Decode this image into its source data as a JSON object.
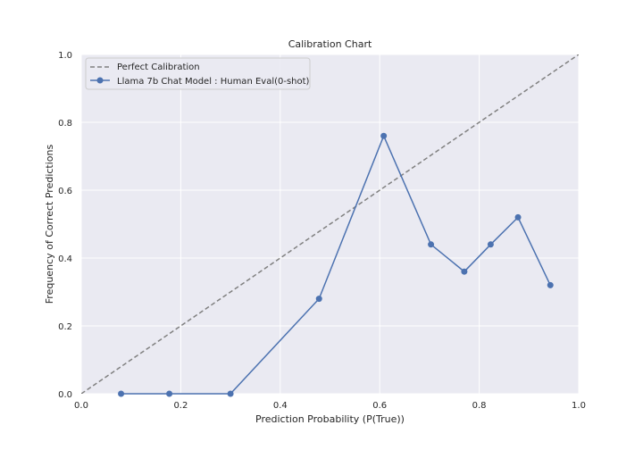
{
  "chart_data": {
    "type": "line",
    "title": "Calibration Chart",
    "xlabel": "Prediction Probability (P(True))",
    "ylabel": "Frequency of Correct Predictions",
    "xlim": [
      0.0,
      1.0
    ],
    "ylim": [
      0.0,
      1.0
    ],
    "xticks": [
      "0.0",
      "0.2",
      "0.4",
      "0.6",
      "0.8",
      "1.0"
    ],
    "yticks": [
      "0.0",
      "0.2",
      "0.4",
      "0.6",
      "0.8",
      "1.0"
    ],
    "grid": true,
    "legend_position": "top-left",
    "series": [
      {
        "name": "Perfect Calibration",
        "style": "dashed",
        "color": "#808080",
        "x": [
          0.0,
          1.0
        ],
        "y": [
          0.0,
          1.0
        ]
      },
      {
        "name": "Llama 7b Chat Model : Human Eval(0-shot)",
        "style": "solid-marker",
        "color": "#4c72b0",
        "x": [
          0.08,
          0.177,
          0.3,
          0.478,
          0.608,
          0.703,
          0.77,
          0.823,
          0.878,
          0.943
        ],
        "y": [
          0.0,
          0.0,
          0.0,
          0.28,
          0.76,
          0.44,
          0.36,
          0.44,
          0.52,
          0.32
        ]
      }
    ]
  },
  "colors": {
    "plot_background": "#eaeaf2",
    "grid": "#ffffff"
  }
}
